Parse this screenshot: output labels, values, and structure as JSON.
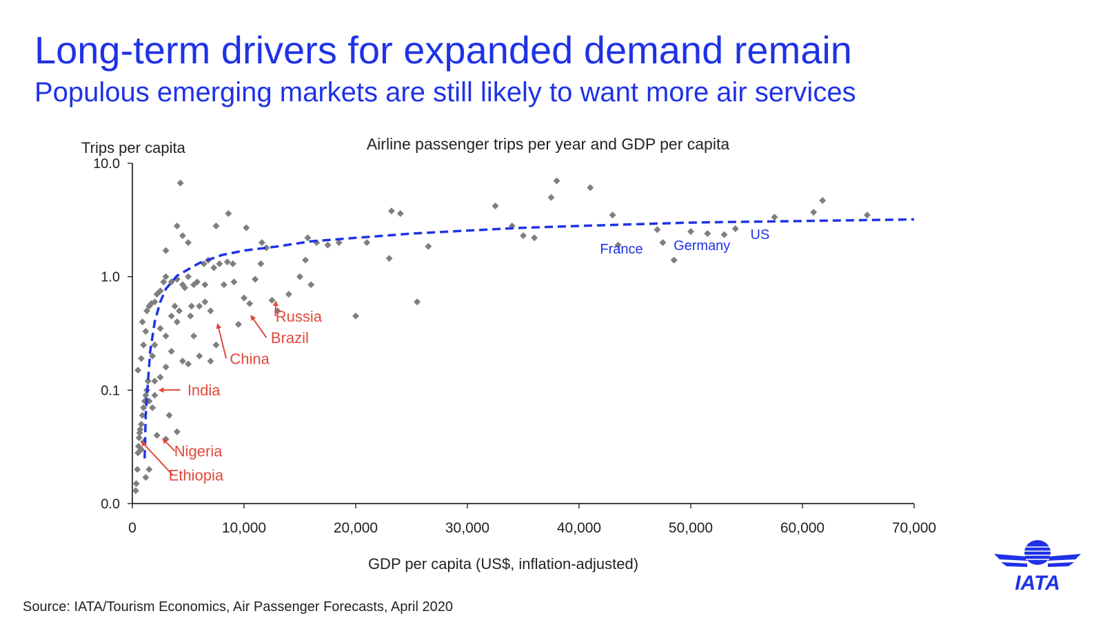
{
  "page": {
    "title": "Long-term drivers for expanded demand remain",
    "subtitle": "Populous emerging markets are still likely to want more air services",
    "source": "Source: IATA/Tourism Economics, Air Passenger Forecasts, April 2020",
    "logo_text": "IATA",
    "colors": {
      "brand_blue": "#1e32e6",
      "point_grey": "#7f7f7f",
      "highlight_red": "#e0483b",
      "trend_blue": "#1e32e6"
    }
  },
  "chart_data": {
    "type": "scatter",
    "title": "Airline passenger trips per year and GDP per capita",
    "xlabel": "GDP per capita (US$, inflation-adjusted)",
    "ylabel": "Trips per capita",
    "xlim": [
      0,
      70000
    ],
    "ylim": [
      0.01,
      10
    ],
    "y_scale": "log",
    "x_ticks": [
      {
        "value": 0,
        "label": "0"
      },
      {
        "value": 10000,
        "label": "10,000"
      },
      {
        "value": 20000,
        "label": "20,000"
      },
      {
        "value": 30000,
        "label": "30,000"
      },
      {
        "value": 40000,
        "label": "40,000"
      },
      {
        "value": 50000,
        "label": "50,000"
      },
      {
        "value": 60000,
        "label": "60,000"
      },
      {
        "value": 70000,
        "label": "70,000"
      }
    ],
    "y_ticks": [
      {
        "value": 0.01,
        "label": "0.0"
      },
      {
        "value": 0.1,
        "label": "0.1"
      },
      {
        "value": 1,
        "label": "1.0"
      },
      {
        "value": 10,
        "label": "10.0"
      }
    ],
    "grid": false,
    "legend": "none",
    "points": [
      [
        300,
        0.013
      ],
      [
        350,
        0.015
      ],
      [
        450,
        0.02
      ],
      [
        500,
        0.028
      ],
      [
        550,
        0.032
      ],
      [
        600,
        0.038
      ],
      [
        650,
        0.042
      ],
      [
        700,
        0.045
      ],
      [
        800,
        0.05
      ],
      [
        900,
        0.06
      ],
      [
        1000,
        0.07
      ],
      [
        1100,
        0.08
      ],
      [
        1200,
        0.09
      ],
      [
        1300,
        0.1
      ],
      [
        1400,
        0.12
      ],
      [
        500,
        0.15
      ],
      [
        800,
        0.19
      ],
      [
        1000,
        0.25
      ],
      [
        1200,
        0.33
      ],
      [
        900,
        0.4
      ],
      [
        1300,
        0.5
      ],
      [
        1500,
        0.55
      ],
      [
        1700,
        0.58
      ],
      [
        2000,
        0.6
      ],
      [
        2200,
        0.7
      ],
      [
        2500,
        0.75
      ],
      [
        2800,
        0.9
      ],
      [
        3000,
        1.0
      ],
      [
        3500,
        0.9
      ],
      [
        4000,
        0.95
      ],
      [
        4500,
        0.85
      ],
      [
        5000,
        1.0
      ],
      [
        5500,
        0.85
      ],
      [
        6000,
        0.55
      ],
      [
        6500,
        0.6
      ],
      [
        7000,
        0.5
      ],
      [
        2000,
        0.25
      ],
      [
        2500,
        0.35
      ],
      [
        3000,
        0.3
      ],
      [
        3500,
        0.45
      ],
      [
        4000,
        0.4
      ],
      [
        4500,
        0.18
      ],
      [
        5000,
        0.17
      ],
      [
        5500,
        0.3
      ],
      [
        6000,
        0.2
      ],
      [
        7000,
        0.18
      ],
      [
        7500,
        0.25
      ],
      [
        2500,
        0.13
      ],
      [
        3000,
        0.16
      ],
      [
        3500,
        0.22
      ],
      [
        1800,
        0.2
      ],
      [
        2000,
        0.12
      ],
      [
        1500,
        0.08
      ],
      [
        1800,
        0.07
      ],
      [
        2000,
        0.09
      ],
      [
        2200,
        0.04
      ],
      [
        1000,
        0.035
      ],
      [
        800,
        0.03
      ],
      [
        1500,
        0.02
      ],
      [
        1200,
        0.017
      ],
      [
        3000,
        0.037
      ],
      [
        4000,
        0.043
      ],
      [
        3300,
        0.06
      ],
      [
        3800,
        0.55
      ],
      [
        4200,
        0.5
      ],
      [
        5200,
        0.45
      ],
      [
        5800,
        0.9
      ],
      [
        6400,
        1.3
      ],
      [
        6800,
        1.4
      ],
      [
        7300,
        1.2
      ],
      [
        7800,
        1.3
      ],
      [
        8200,
        0.85
      ],
      [
        8500,
        1.35
      ],
      [
        9000,
        1.3
      ],
      [
        9500,
        0.38
      ],
      [
        10000,
        0.65
      ],
      [
        10500,
        0.58
      ],
      [
        11000,
        0.95
      ],
      [
        11500,
        1.3
      ],
      [
        12000,
        1.8
      ],
      [
        13000,
        0.5
      ],
      [
        14000,
        0.7
      ],
      [
        15000,
        1.0
      ],
      [
        15500,
        1.4
      ],
      [
        16000,
        0.85
      ],
      [
        16500,
        2.0
      ],
      [
        17500,
        1.9
      ],
      [
        18500,
        2.0
      ],
      [
        20000,
        0.45
      ],
      [
        21000,
        2.0
      ],
      [
        23000,
        1.45
      ],
      [
        23200,
        3.8
      ],
      [
        24000,
        3.6
      ],
      [
        25500,
        0.6
      ],
      [
        26500,
        1.85
      ],
      [
        32500,
        4.2
      ],
      [
        34000,
        2.8
      ],
      [
        35000,
        2.3
      ],
      [
        36000,
        2.2
      ],
      [
        37500,
        5.0
      ],
      [
        38000,
        7.0
      ],
      [
        41000,
        6.1
      ],
      [
        43000,
        3.5
      ],
      [
        43500,
        1.9
      ],
      [
        47000,
        2.6
      ],
      [
        47500,
        2.0
      ],
      [
        48500,
        1.4
      ],
      [
        50000,
        2.5
      ],
      [
        51500,
        2.4
      ],
      [
        53000,
        2.35
      ],
      [
        54000,
        2.65
      ],
      [
        57500,
        3.35
      ],
      [
        61000,
        3.7
      ],
      [
        61800,
        4.7
      ],
      [
        65800,
        3.5
      ],
      [
        4300,
        6.7
      ],
      [
        4000,
        2.8
      ],
      [
        4500,
        2.3
      ],
      [
        5000,
        2.0
      ],
      [
        3000,
        1.7
      ],
      [
        7500,
        2.8
      ],
      [
        8600,
        3.6
      ],
      [
        10200,
        2.7
      ],
      [
        11600,
        2.0
      ],
      [
        15700,
        2.2
      ],
      [
        12500,
        0.62
      ],
      [
        9100,
        0.9
      ],
      [
        6500,
        0.85
      ],
      [
        5300,
        0.55
      ],
      [
        4700,
        0.8
      ]
    ],
    "trendline": [
      [
        1100,
        0.025
      ],
      [
        1200,
        0.06
      ],
      [
        1400,
        0.12
      ],
      [
        1600,
        0.22
      ],
      [
        2000,
        0.4
      ],
      [
        2500,
        0.6
      ],
      [
        3000,
        0.78
      ],
      [
        4000,
        1.02
      ],
      [
        6000,
        1.32
      ],
      [
        8000,
        1.55
      ],
      [
        10000,
        1.7
      ],
      [
        13000,
        1.85
      ],
      [
        16000,
        2.05
      ],
      [
        20000,
        2.2
      ],
      [
        25000,
        2.4
      ],
      [
        30000,
        2.55
      ],
      [
        35000,
        2.7
      ],
      [
        40000,
        2.8
      ],
      [
        45000,
        2.9
      ],
      [
        50000,
        3.0
      ],
      [
        55000,
        3.05
      ],
      [
        60000,
        3.1
      ],
      [
        65000,
        3.15
      ],
      [
        70000,
        3.2
      ]
    ],
    "annotations": {
      "red": [
        {
          "label": "Russia",
          "text_at": [
            14900,
            0.4
          ],
          "point": [
            12600,
            0.6
          ]
        },
        {
          "label": "Brazil",
          "text_at": [
            14100,
            0.26
          ],
          "point": [
            10400,
            0.45
          ]
        },
        {
          "label": "China",
          "text_at": [
            10500,
            0.17
          ],
          "point": [
            7400,
            0.38
          ]
        },
        {
          "label": "India",
          "text_at": [
            6400,
            0.09
          ],
          "point": [
            2200,
            0.1
          ]
        },
        {
          "label": "Nigeria",
          "text_at": [
            5900,
            0.026
          ],
          "point": [
            2500,
            0.037
          ]
        },
        {
          "label": "Ethiopia",
          "text_at": [
            5700,
            0.016
          ],
          "point": [
            600,
            0.035
          ]
        }
      ],
      "blue": [
        {
          "label": "France",
          "text_at": [
            43800,
            1.6
          ]
        },
        {
          "label": "Germany",
          "text_at": [
            51000,
            1.72
          ]
        },
        {
          "label": "US",
          "text_at": [
            56200,
            2.15
          ]
        }
      ]
    }
  }
}
